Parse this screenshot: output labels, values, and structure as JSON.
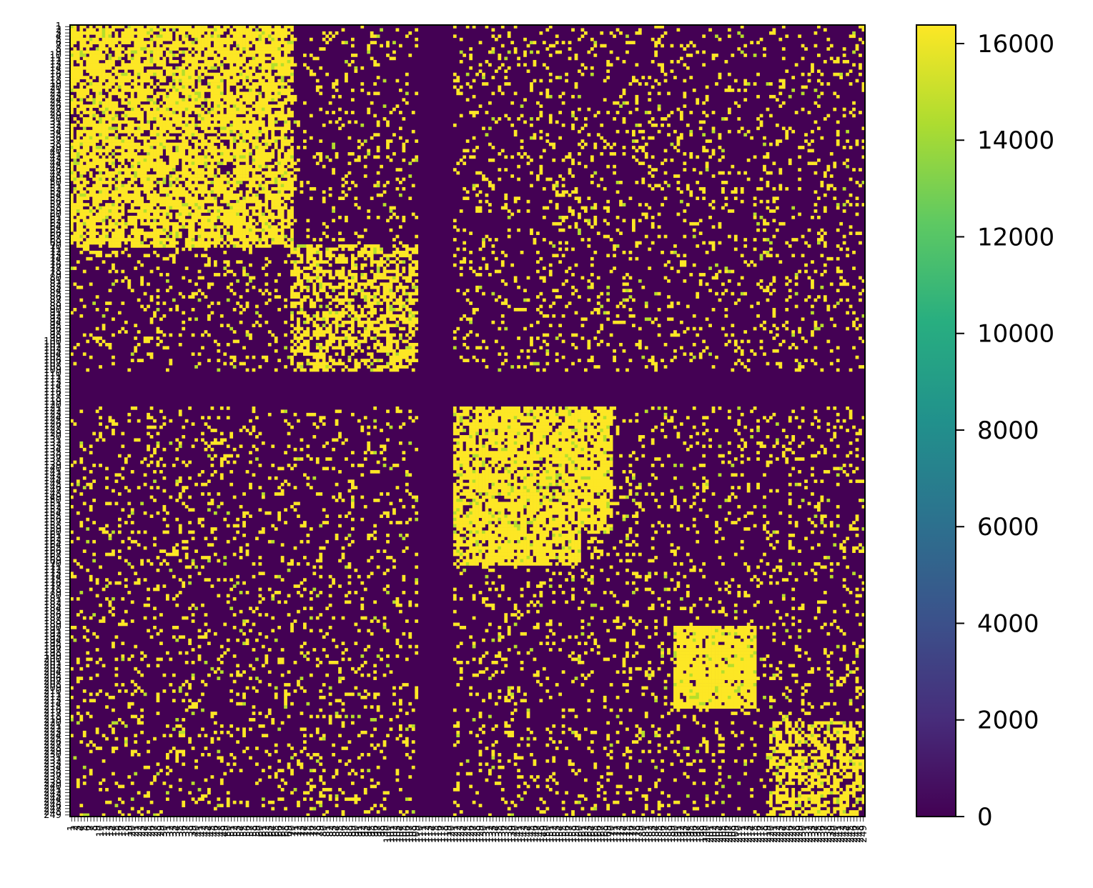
{
  "chart_data": {
    "type": "heatmap",
    "title": "",
    "xlabel": "",
    "ylabel": "",
    "n_rows": 249,
    "n_cols": 249,
    "x_ticks": {
      "start": 1,
      "end": 249,
      "step": 1
    },
    "y_ticks": {
      "start": 1,
      "end": 249,
      "step": 1
    },
    "colorbar": {
      "colormap": "viridis",
      "range": [
        0,
        16384
      ],
      "ticks": [
        0,
        2000,
        4000,
        6000,
        8000,
        10000,
        12000,
        14000,
        16000
      ],
      "tick_labels": [
        "0",
        "2000",
        "4000",
        "6000",
        "8000",
        "10000",
        "12000",
        "14000",
        "16000"
      ]
    },
    "value_levels": {
      "low": 0,
      "high": 16000,
      "mid": 14000
    },
    "block_structure": [
      {
        "rows": [
          1,
          70
        ],
        "cols": [
          1,
          70
        ],
        "density": 0.75
      },
      {
        "rows": [
          70,
          110
        ],
        "cols": [
          70,
          110
        ],
        "density": 0.55
      },
      {
        "rows": [
          120,
          160
        ],
        "cols": [
          120,
          170
        ],
        "density": 0.8
      },
      {
        "rows": [
          190,
          215
        ],
        "cols": [
          190,
          215
        ],
        "density": 0.9
      },
      {
        "rows": [
          220,
          249
        ],
        "cols": [
          220,
          249
        ],
        "density": 0.6
      }
    ],
    "empty_bands": {
      "rows": [
        110,
        120
      ],
      "cols": [
        110,
        120
      ]
    },
    "colors": {
      "low": "#440154",
      "high": "#fde725",
      "mid": "#b5de2b",
      "frame": "#000000"
    }
  }
}
